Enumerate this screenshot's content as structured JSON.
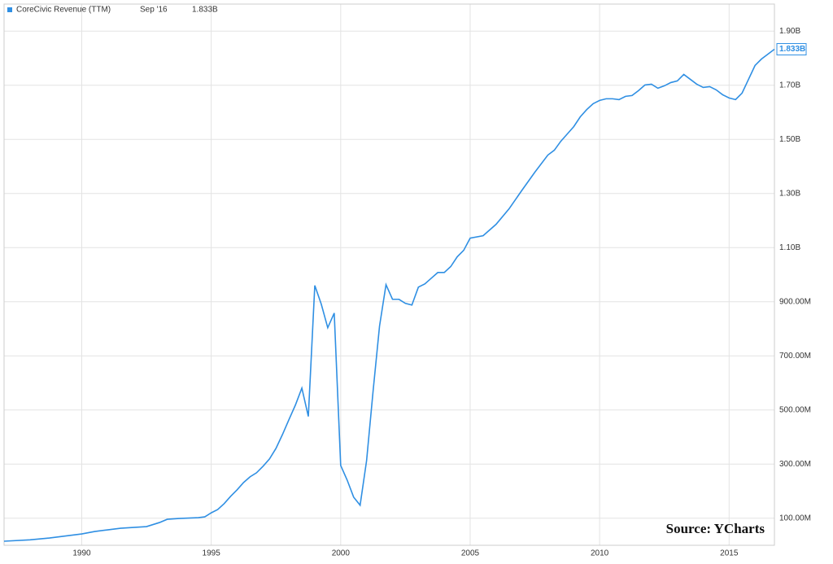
{
  "chart_data": {
    "type": "line",
    "legend_date": "Sep '16",
    "source": "Source: YCharts",
    "xlim": [
      1987,
      2016.75
    ],
    "xticks": [
      1990,
      1995,
      2000,
      2005,
      2010,
      2015
    ],
    "ylim": [
      0,
      2000
    ],
    "yticks": [
      {
        "value": 100,
        "label": "100.00M"
      },
      {
        "value": 300,
        "label": "300.00M"
      },
      {
        "value": 500,
        "label": "500.00M"
      },
      {
        "value": 700,
        "label": "700.00M"
      },
      {
        "value": 900,
        "label": "900.00M"
      },
      {
        "value": 1100,
        "label": "1.10B"
      },
      {
        "value": 1300,
        "label": "1.30B"
      },
      {
        "value": 1500,
        "label": "1.50B"
      },
      {
        "value": 1700,
        "label": "1.70B"
      },
      {
        "value": 1900,
        "label": "1.90B"
      }
    ],
    "grid": true,
    "x": [
      1987,
      1988,
      1988.75,
      1989.5,
      1990,
      1990.5,
      1991,
      1991.5,
      1992,
      1992.5,
      1993,
      1993.3,
      1993.75,
      1994.5,
      1994.75,
      1995,
      1995.25,
      1995.5,
      1995.75,
      1996,
      1996.25,
      1996.5,
      1996.75,
      1997,
      1997.25,
      1997.5,
      1997.75,
      1998,
      1998.25,
      1998.5,
      1998.75,
      1999,
      1999.25,
      1999.5,
      1999.75,
      2000,
      2000.25,
      2000.5,
      2000.75,
      2001,
      2001.25,
      2001.5,
      2001.75,
      2002,
      2002.25,
      2002.5,
      2002.75,
      2003,
      2003.25,
      2003.5,
      2003.75,
      2004,
      2004.25,
      2004.5,
      2004.75,
      2005,
      2005.5,
      2006,
      2006.5,
      2007,
      2007.5,
      2008,
      2008.25,
      2008.5,
      2008.75,
      2009,
      2009.25,
      2009.5,
      2009.75,
      2010,
      2010.25,
      2010.5,
      2010.75,
      2011,
      2011.25,
      2011.5,
      2011.75,
      2012,
      2012.25,
      2012.5,
      2012.75,
      2013,
      2013.25,
      2013.5,
      2013.75,
      2014,
      2014.25,
      2014.5,
      2014.75,
      2015,
      2015.25,
      2015.5,
      2015.75,
      2016,
      2016.25,
      2016.5,
      2016.75
    ],
    "series": [
      {
        "name": "CoreCivic Revenue (TTM)",
        "color": "#2f8fe3",
        "values": [
          15,
          20,
          27,
          36,
          42,
          51,
          57,
          63,
          66,
          69,
          84,
          96,
          99,
          102,
          105,
          120,
          132,
          154,
          181,
          205,
          232,
          253,
          268,
          292,
          319,
          358,
          409,
          464,
          518,
          581,
          476,
          960,
          891,
          804,
          858,
          295,
          241,
          178,
          148,
          313,
          569,
          810,
          963,
          909,
          909,
          894,
          888,
          954,
          966,
          987,
          1008,
          1008,
          1030,
          1066,
          1090,
          1135,
          1144,
          1186,
          1243,
          1312,
          1379,
          1442,
          1460,
          1493,
          1520,
          1547,
          1583,
          1610,
          1632,
          1644,
          1650,
          1650,
          1647,
          1659,
          1662,
          1680,
          1701,
          1704,
          1689,
          1698,
          1710,
          1716,
          1740,
          1722,
          1704,
          1692,
          1695,
          1683,
          1665,
          1653,
          1647,
          1671,
          1722,
          1773,
          1797,
          1815,
          1833
        ],
        "value_labels": [
          null,
          null,
          null,
          null,
          null,
          null,
          null,
          null,
          null,
          null,
          null,
          null,
          null,
          null,
          null,
          null,
          null,
          null,
          null,
          null,
          null,
          null,
          null,
          null,
          null,
          null,
          null,
          null,
          null,
          null,
          null,
          null,
          null,
          null,
          null,
          null,
          null,
          null,
          null,
          null,
          null,
          null,
          null,
          null,
          null,
          null,
          null,
          null,
          null,
          null,
          null,
          null,
          null,
          null,
          null,
          null,
          null,
          null,
          null,
          null,
          null,
          null,
          null,
          null,
          null,
          null,
          null,
          null,
          null,
          null,
          null,
          null,
          null,
          null,
          null,
          null,
          null,
          null,
          null,
          null,
          null,
          null,
          null,
          null,
          null,
          null,
          null,
          null,
          null,
          null,
          null,
          null,
          null,
          null,
          null,
          null,
          "1.833B"
        ]
      }
    ]
  }
}
